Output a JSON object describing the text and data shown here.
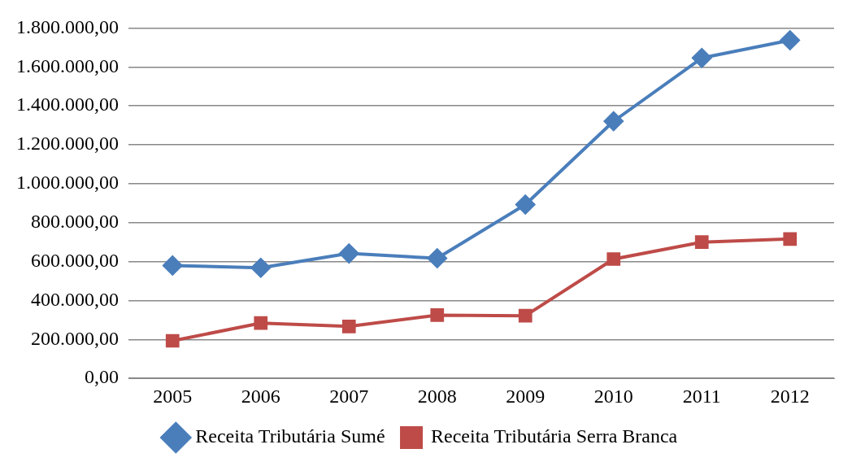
{
  "chart_data": {
    "type": "line",
    "categories": [
      "2005",
      "2006",
      "2007",
      "2008",
      "2009",
      "2010",
      "2011",
      "2012"
    ],
    "series": [
      {
        "name": "Receita Tributária Sumé",
        "color": "#4a7ebb",
        "marker": "diamond",
        "values": [
          580000,
          568000,
          642000,
          617000,
          893000,
          1321000,
          1646000,
          1737000
        ]
      },
      {
        "name": "Receita Tributária Serra Branca",
        "color": "#be4b48",
        "marker": "square",
        "values": [
          193000,
          284000,
          267000,
          325000,
          322000,
          613000,
          700000,
          716000
        ]
      }
    ],
    "ylim": [
      0,
      1800000
    ],
    "yticks": [
      {
        "value": 0,
        "label": "0,00"
      },
      {
        "value": 200000,
        "label": "200.000,00"
      },
      {
        "value": 400000,
        "label": "400.000,00"
      },
      {
        "value": 600000,
        "label": "600.000,00"
      },
      {
        "value": 800000,
        "label": "800.000,00"
      },
      {
        "value": 1000000,
        "label": "1.000.000,00"
      },
      {
        "value": 1200000,
        "label": "1.200.000,00"
      },
      {
        "value": 1400000,
        "label": "1.400.000,00"
      },
      {
        "value": 1600000,
        "label": "1.600.000,00"
      },
      {
        "value": 1800000,
        "label": "1.800.000,00"
      }
    ],
    "grid": "y",
    "legend": "bottom",
    "line_style": "solid"
  }
}
